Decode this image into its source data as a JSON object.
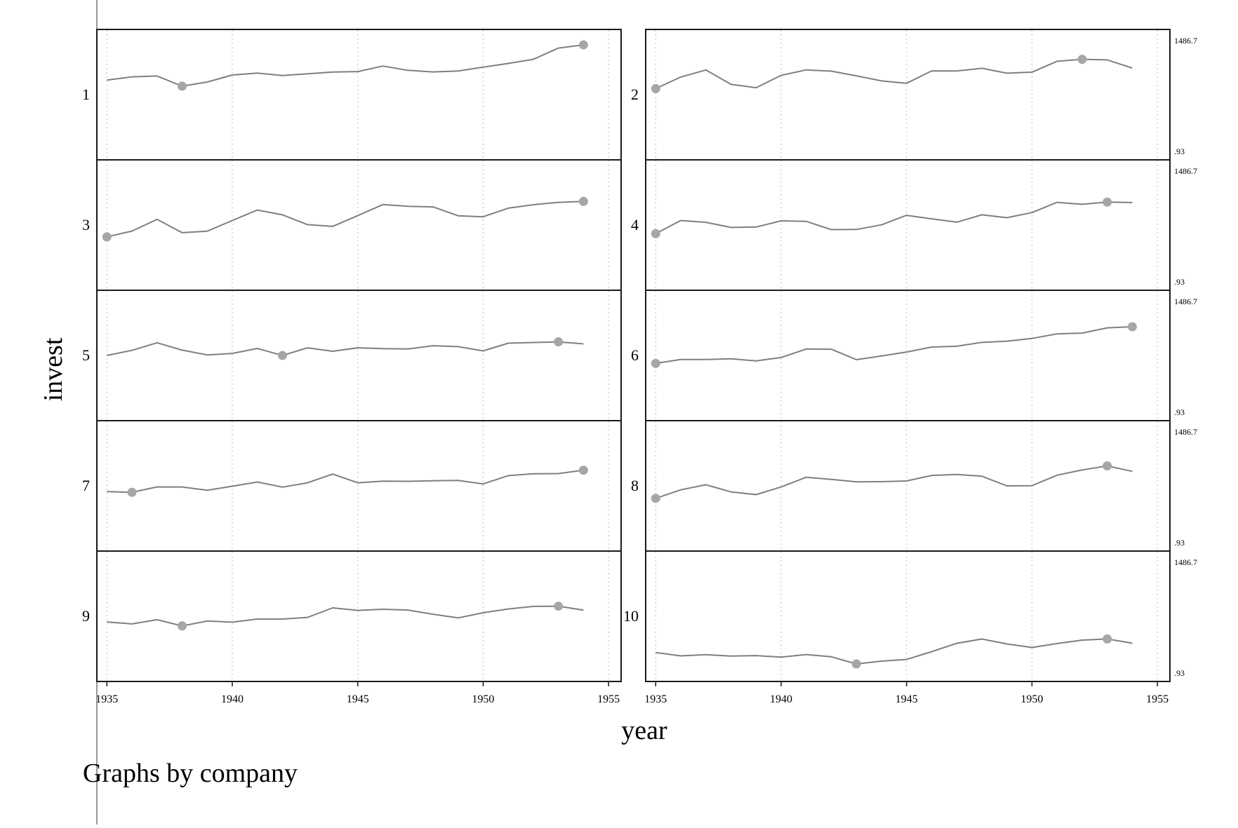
{
  "chart_data": {
    "type": "line",
    "layout": "small-multiples",
    "xlabel": "year",
    "ylabel": "invest",
    "note": "Graphs by company",
    "xlim": [
      1934.6,
      1955.5
    ],
    "xticks": [
      1935,
      1940,
      1945,
      1950,
      1955
    ],
    "x": [
      1935,
      1936,
      1937,
      1938,
      1939,
      1940,
      1941,
      1942,
      1943,
      1944,
      1945,
      1946,
      1947,
      1948,
      1949,
      1950,
      1951,
      1952,
      1953,
      1954
    ],
    "range_labels": {
      "max": "1486.7",
      "min": ".93"
    },
    "marker_rule": "min and max of each company",
    "panels": [
      {
        "name": "1",
        "markers": [
          1938,
          1954
        ],
        "values": [
          0.628,
          0.657,
          0.664,
          0.575,
          0.611,
          0.673,
          0.69,
          0.668,
          0.684,
          0.699,
          0.703,
          0.752,
          0.714,
          0.7,
          0.708,
          0.742,
          0.775,
          0.811,
          0.91,
          0.938
        ]
      },
      {
        "name": "2",
        "markers": [
          1935,
          1952
        ],
        "values": [
          0.553,
          0.655,
          0.717,
          0.591,
          0.561,
          0.67,
          0.718,
          0.707,
          0.666,
          0.621,
          0.6,
          0.709,
          0.708,
          0.732,
          0.689,
          0.698,
          0.794,
          0.811,
          0.806,
          0.734
        ]
      },
      {
        "name": "3",
        "markers": [
          1935,
          1954
        ],
        "values": [
          0.396,
          0.447,
          0.55,
          0.433,
          0.446,
          0.54,
          0.632,
          0.59,
          0.504,
          0.488,
          0.583,
          0.68,
          0.665,
          0.66,
          0.582,
          0.573,
          0.649,
          0.679,
          0.7,
          0.708
        ]
      },
      {
        "name": "4",
        "markers": [
          1935,
          1953
        ],
        "values": [
          0.424,
          0.54,
          0.524,
          0.479,
          0.483,
          0.537,
          0.533,
          0.46,
          0.461,
          0.502,
          0.586,
          0.555,
          0.525,
          0.59,
          0.565,
          0.61,
          0.7,
          0.683,
          0.702,
          0.698
        ]
      },
      {
        "name": "5",
        "markers": [
          1942,
          1953
        ],
        "values": [
          0.5,
          0.545,
          0.612,
          0.547,
          0.505,
          0.518,
          0.562,
          0.5,
          0.567,
          0.537,
          0.567,
          0.56,
          0.557,
          0.586,
          0.578,
          0.54,
          0.608,
          0.614,
          0.62,
          0.602
        ]
      },
      {
        "name": "6",
        "markers": [
          1935,
          1954
        ],
        "values": [
          0.43,
          0.465,
          0.464,
          0.471,
          0.452,
          0.482,
          0.557,
          0.555,
          0.463,
          0.495,
          0.53,
          0.574,
          0.581,
          0.615,
          0.626,
          0.65,
          0.69,
          0.697,
          0.743,
          0.753
        ]
      },
      {
        "name": "7",
        "markers": [
          1936,
          1954
        ],
        "values": [
          0.45,
          0.443,
          0.491,
          0.49,
          0.462,
          0.497,
          0.534,
          0.489,
          0.527,
          0.604,
          0.527,
          0.542,
          0.54,
          0.545,
          0.548,
          0.517,
          0.59,
          0.606,
          0.608,
          0.638
        ]
      },
      {
        "name": "8",
        "markers": [
          1935,
          1953
        ],
        "values": [
          0.39,
          0.465,
          0.51,
          0.447,
          0.423,
          0.49,
          0.576,
          0.557,
          0.535,
          0.537,
          0.543,
          0.592,
          0.6,
          0.585,
          0.5,
          0.502,
          0.594,
          0.64,
          0.676,
          0.628
        ]
      },
      {
        "name": "9",
        "markers": [
          1938,
          1953
        ],
        "values": [
          0.45,
          0.433,
          0.47,
          0.415,
          0.458,
          0.448,
          0.475,
          0.475,
          0.49,
          0.574,
          0.552,
          0.562,
          0.555,
          0.518,
          0.486,
          0.531,
          0.564,
          0.587,
          0.589,
          0.554
        ]
      },
      {
        "name": "10",
        "markers": [
          1943,
          1953
        ],
        "values": [
          0.18,
          0.151,
          0.162,
          0.15,
          0.154,
          0.14,
          0.163,
          0.143,
          0.08,
          0.105,
          0.12,
          0.188,
          0.262,
          0.3,
          0.256,
          0.225,
          0.26,
          0.29,
          0.3,
          0.263
        ]
      }
    ]
  }
}
